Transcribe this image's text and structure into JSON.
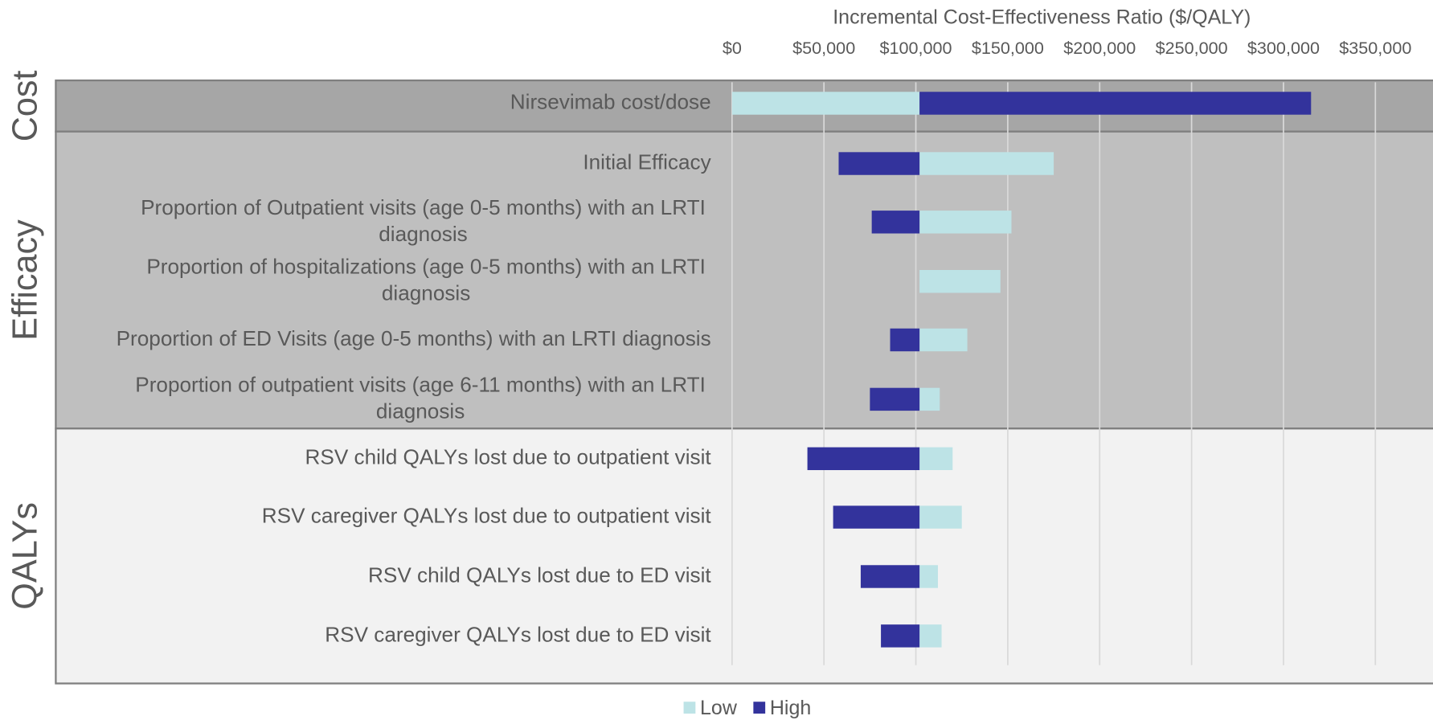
{
  "chart_data": {
    "type": "tornado",
    "title": "Incremental Cost-Effectiveness Ratio  ($/QALY)",
    "groups": [
      {
        "label": "Cost",
        "categories": [
          "Nirsevimab cost/dose"
        ]
      },
      {
        "label": "Efficacy",
        "categories": [
          "Initial Efficacy",
          "Proportion of Outpatient visits (age 0-5 months) with an LRTI diagnosis",
          "Proportion of hospitalizations (age 0-5 months) with an LRTI diagnosis",
          "Proportion of ED Visits (age 0-5 months) with an LRTI diagnosis",
          "Proportion of outpatient visits (age 6-11 months) with an LRTI diagnosis"
        ]
      },
      {
        "label": "QALYs",
        "categories": [
          "RSV child QALYs lost due to outpatient visit",
          "RSV caregiver QALYs lost due to outpatient visit",
          "RSV child QALYs lost due to ED visit",
          "RSV caregiver QALYs lost due to ED visit"
        ]
      }
    ],
    "base": 102000,
    "series": [
      {
        "name": "Low",
        "color": "#bde3e6",
        "values": [
          0,
          175000,
          152000,
          146000,
          128000,
          113000,
          120000,
          125000,
          112000,
          114000
        ]
      },
      {
        "name": "High",
        "color": "#33339c",
        "values": [
          315000,
          58000,
          76000,
          null,
          86000,
          75000,
          41000,
          55000,
          70000,
          81000
        ]
      }
    ],
    "xlim": [
      0,
      350000
    ],
    "xticks": [
      {
        "value": 0,
        "label": "$0"
      },
      {
        "value": 50000,
        "label": "$50,000"
      },
      {
        "value": 100000,
        "label": "$100,000"
      },
      {
        "value": 150000,
        "label": "$150,000"
      },
      {
        "value": 200000,
        "label": "$200,000"
      },
      {
        "value": 250000,
        "label": "$250,000"
      },
      {
        "value": 300000,
        "label": "$300,000"
      },
      {
        "value": 350000,
        "label": "$350,000"
      }
    ],
    "grid": true,
    "legend": "bottom"
  }
}
